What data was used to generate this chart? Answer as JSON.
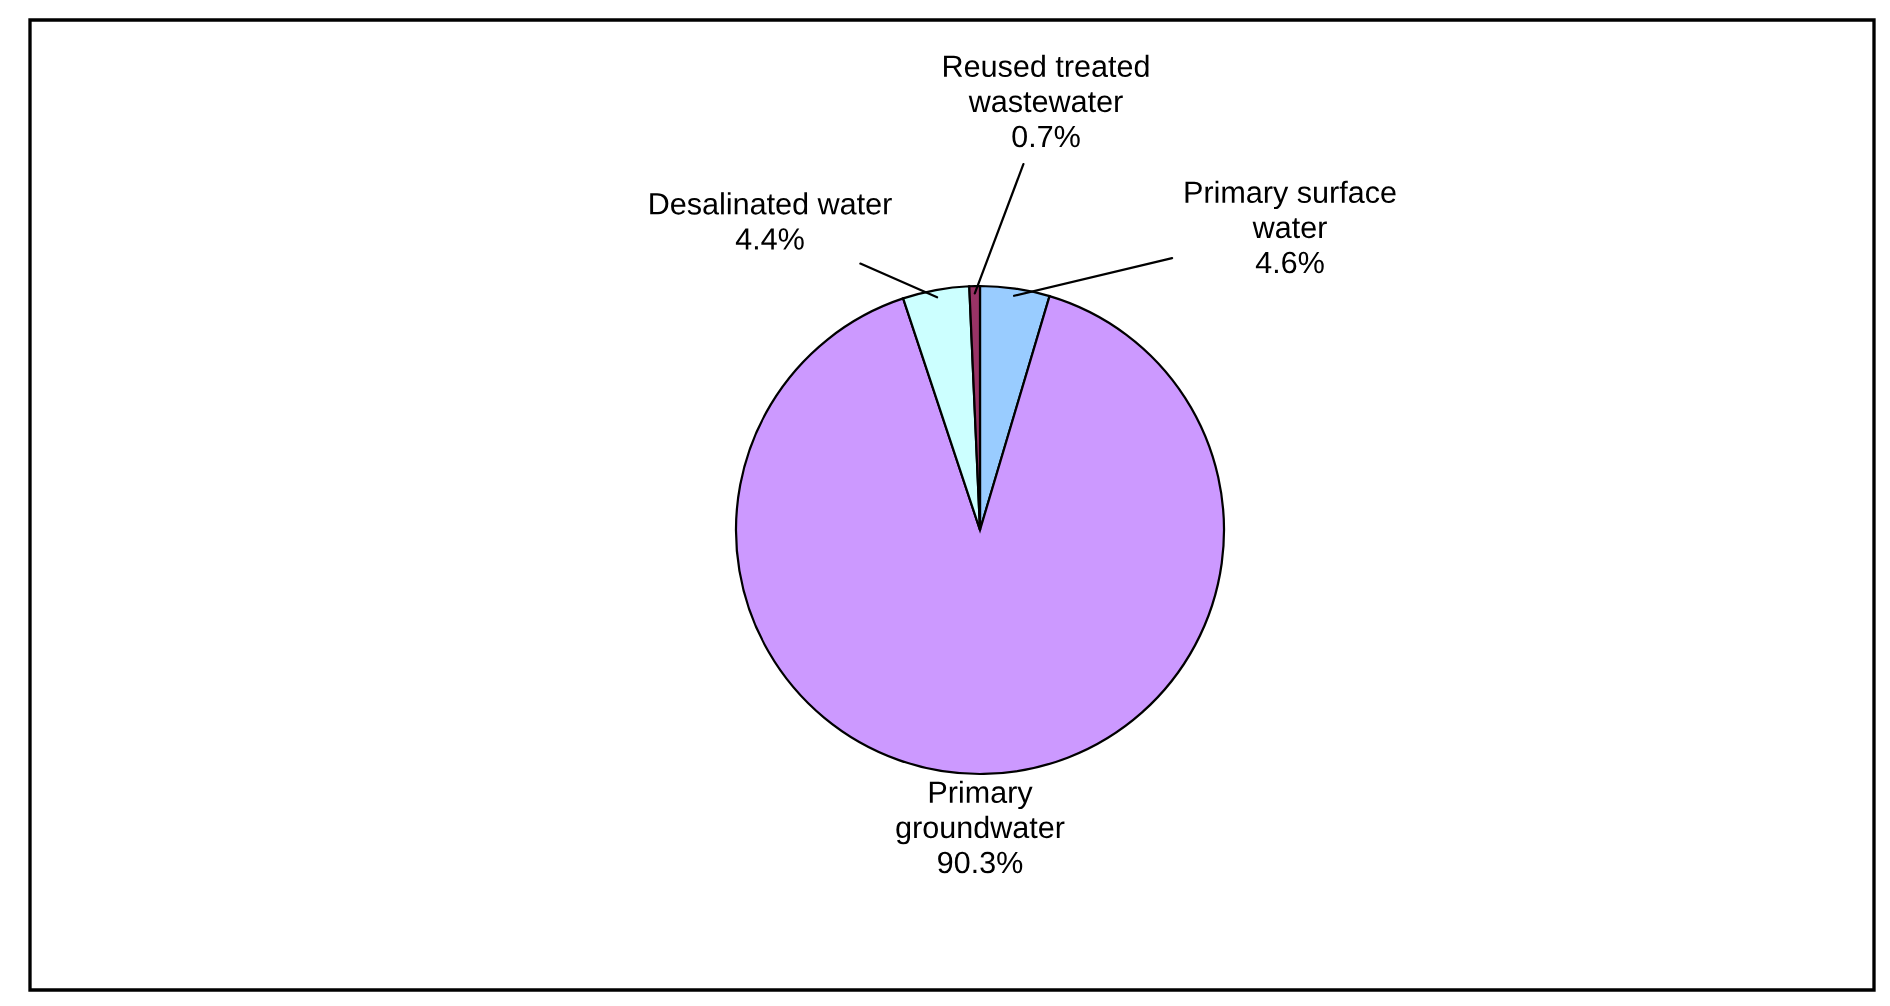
{
  "chart_data": {
    "type": "pie",
    "categories": [
      "Primary surface\nwater",
      "Primary\ngroundwater",
      "Desalinated water",
      "Reused treated\nwastewater"
    ],
    "values": [
      4.6,
      90.3,
      4.4,
      0.7
    ],
    "value_labels": [
      "4.6%",
      "90.3%",
      "4.4%",
      "0.7%"
    ],
    "colors": [
      "#99ccff",
      "#cc99ff",
      "#ccffff",
      "#993366"
    ]
  }
}
